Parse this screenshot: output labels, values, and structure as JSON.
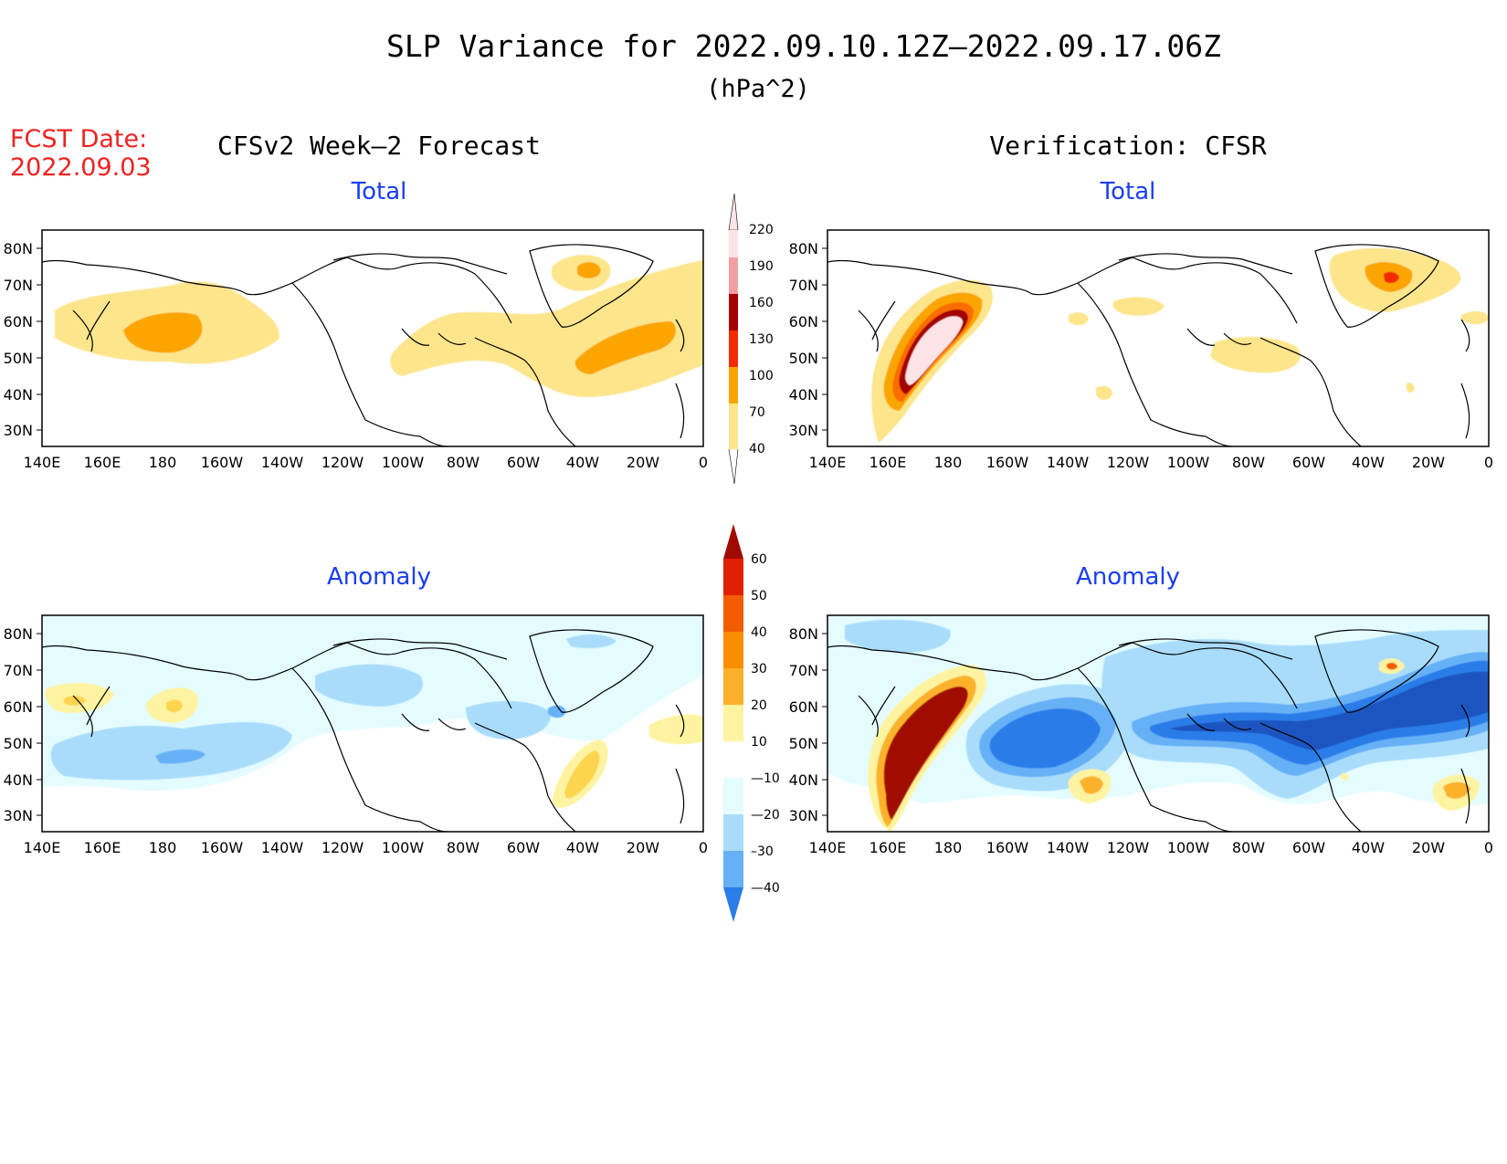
{
  "title": "SLP Variance for 2022.09.10.12Z—2022.09.17.06Z",
  "units": "(hPa^2)",
  "fcst_date_label": "FCST Date:",
  "fcst_date": "2022.09.03",
  "column_titles": {
    "forecast": "CFSv2 Week—2 Forecast",
    "verification": "Verification: CFSR"
  },
  "row_titles": {
    "total": "Total",
    "anomaly": "Anomaly"
  },
  "lat_labels": [
    "80N",
    "70N",
    "60N",
    "50N",
    "40N",
    "30N"
  ],
  "lon_labels": [
    "140E",
    "160E",
    "180",
    "160W",
    "140W",
    "120W",
    "100W",
    "80W",
    "60W",
    "40W",
    "20W",
    "0"
  ],
  "colors": {
    "t40": "#fde58c",
    "t70": "#fca400",
    "t100": "#fb6c00",
    "t130": "#f22c00",
    "t160": "#a50000",
    "t190": "#f19fa1",
    "t220": "#fce3e6",
    "a10": "#fef3a0",
    "a20": "#fcd44e",
    "a30": "#fbb12b",
    "a40": "#fb8e00",
    "a50": "#f25c00",
    "a60": "#e02000",
    "a70": "#a00a00",
    "n10": "#e4fcff",
    "n20": "#a9dcfb",
    "n30": "#66b0f6",
    "n40": "#2b7de8",
    "n50": "#1a54c0"
  },
  "colorbar_total": {
    "ticks": [
      "220",
      "190",
      "160",
      "130",
      "100",
      "70",
      "40"
    ]
  },
  "colorbar_anomaly": {
    "ticks": [
      "60",
      "50",
      "40",
      "30",
      "20",
      "10",
      "—10",
      "—20",
      "–30",
      "—40"
    ]
  },
  "chart_data": [
    {
      "type": "heatmap",
      "panel": "forecast-total",
      "title": "Total",
      "field": "SLP variance (hPa^2)",
      "contour_levels": [
        40,
        70,
        100,
        130,
        160,
        190,
        220
      ],
      "xlim": [
        "140E",
        "0"
      ],
      "ylim": [
        "25N",
        "85N"
      ],
      "features": [
        {
          "name": "north-pacific-max",
          "center": [
            "178E",
            "55N"
          ],
          "max_level": 70
        },
        {
          "name": "greenland-max",
          "center": [
            "40W",
            "72N"
          ],
          "max_level": 70
        },
        {
          "name": "north-atlantic-max",
          "center": [
            "30W",
            "52N"
          ],
          "max_level": 70
        }
      ]
    },
    {
      "type": "heatmap",
      "panel": "verification-total",
      "title": "Total",
      "field": "SLP variance (hPa^2)",
      "contour_levels": [
        40,
        70,
        100,
        130,
        160,
        190,
        220
      ],
      "xlim": [
        "140E",
        "0"
      ],
      "ylim": [
        "25N",
        "85N"
      ],
      "features": [
        {
          "name": "bering-sea-max",
          "center": [
            "172E",
            "55N"
          ],
          "max_level": 220
        },
        {
          "name": "greenland-east-max",
          "center": [
            "35W",
            "72N"
          ],
          "max_level": 130
        }
      ]
    },
    {
      "type": "heatmap",
      "panel": "forecast-anomaly",
      "title": "Anomaly",
      "field": "SLP variance anomaly (hPa^2)",
      "contour_levels": [
        -40,
        -30,
        -20,
        -10,
        10,
        20,
        30,
        40,
        50,
        60
      ],
      "xlim": [
        "140E",
        "0"
      ],
      "ylim": [
        "25N",
        "85N"
      ],
      "features": [
        {
          "name": "north-pacific-min",
          "center": [
            "175W",
            "46N"
          ],
          "min_level": -30
        },
        {
          "name": "atlantic-max",
          "center": [
            "45W",
            "45N"
          ],
          "max_level": 30
        }
      ]
    },
    {
      "type": "heatmap",
      "panel": "verification-anomaly",
      "title": "Anomaly",
      "field": "SLP variance anomaly (hPa^2)",
      "contour_levels": [
        -40,
        -30,
        -20,
        -10,
        10,
        20,
        30,
        40,
        50,
        60
      ],
      "xlim": [
        "140E",
        "0"
      ],
      "ylim": [
        "25N",
        "85N"
      ],
      "features": [
        {
          "name": "west-pacific-max",
          "center": [
            "170E",
            "50N"
          ],
          "max_level": 60
        },
        {
          "name": "gulf-of-alaska-min",
          "center": [
            "150W",
            "52N"
          ],
          "min_level": -40
        },
        {
          "name": "atlantic-min-band",
          "center": [
            "40W",
            "60N"
          ],
          "min_level": -40
        }
      ]
    }
  ]
}
